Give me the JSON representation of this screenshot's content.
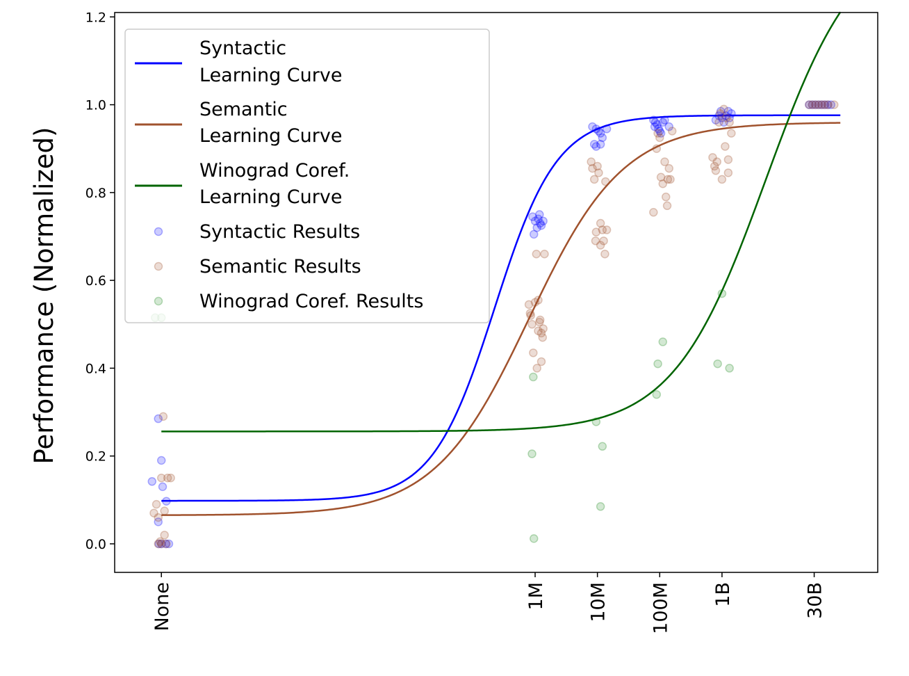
{
  "chart_data": {
    "type": "scatter",
    "ylabel": "Performance (Normalized)",
    "xlabel": "",
    "ylim": [
      -0.065,
      1.21
    ],
    "xlim": [
      -0.75,
      11.5
    ],
    "grid": false,
    "legend_position": "top-left",
    "x_ticks": [
      {
        "label": "None",
        "x": 0
      },
      {
        "label": "1M",
        "x": 6
      },
      {
        "label": "10M",
        "x": 7
      },
      {
        "label": "100M",
        "x": 8
      },
      {
        "label": "1B",
        "x": 9
      },
      {
        "label": "30B",
        "x": 10.48
      }
    ],
    "y_ticks": [
      0.0,
      0.2,
      0.4,
      0.6,
      0.8,
      1.0,
      1.2
    ],
    "curves": [
      {
        "name": "Syntactic\nLearning Curve",
        "color": "#0000ff",
        "low": 0.098,
        "high": 0.976,
        "mid": 5.35,
        "slope": 2.0
      },
      {
        "name": "Semantic\nLearning Curve",
        "color": "#a0522d",
        "low": 0.065,
        "high": 0.96,
        "mid": 5.9,
        "slope": 1.32
      },
      {
        "name": "Winograd Coref.\nLearning Curve",
        "color": "#006400",
        "low": 0.256,
        "high": 1.4,
        "mid": 9.7,
        "slope": 1.35
      }
    ],
    "scatter": [
      {
        "name": "Syntactic Results",
        "color": "#0000ff",
        "points": [
          [
            -0.15,
            0.142
          ],
          [
            -0.05,
            0.285
          ],
          [
            0.0,
            0.19
          ],
          [
            0.02,
            0.13
          ],
          [
            0.08,
            0.097
          ],
          [
            -0.05,
            0.05
          ],
          [
            -0.04,
            0.0
          ],
          [
            0.0,
            0.0
          ],
          [
            0.07,
            0.0
          ],
          [
            0.12,
            0.0
          ],
          [
            5.96,
            0.745
          ],
          [
            6.0,
            0.735
          ],
          [
            6.03,
            0.72
          ],
          [
            6.05,
            0.74
          ],
          [
            6.07,
            0.75
          ],
          [
            6.08,
            0.73
          ],
          [
            6.1,
            0.725
          ],
          [
            6.13,
            0.735
          ],
          [
            5.98,
            0.705
          ],
          [
            6.92,
            0.95
          ],
          [
            6.95,
            0.91
          ],
          [
            6.98,
            0.945
          ],
          [
            7.02,
            0.94
          ],
          [
            7.05,
            0.935
          ],
          [
            7.08,
            0.925
          ],
          [
            6.98,
            0.905
          ],
          [
            7.15,
            0.945
          ],
          [
            7.05,
            0.91
          ],
          [
            7.9,
            0.965
          ],
          [
            7.93,
            0.96
          ],
          [
            7.96,
            0.955
          ],
          [
            7.98,
            0.945
          ],
          [
            8.0,
            0.94
          ],
          [
            8.02,
            0.935
          ],
          [
            8.05,
            0.96
          ],
          [
            8.08,
            0.965
          ],
          [
            8.15,
            0.95
          ],
          [
            7.92,
            0.95
          ],
          [
            8.9,
            0.965
          ],
          [
            8.95,
            0.975
          ],
          [
            8.98,
            0.985
          ],
          [
            9.0,
            0.97
          ],
          [
            9.03,
            0.96
          ],
          [
            9.06,
            0.975
          ],
          [
            9.1,
            0.985
          ],
          [
            9.12,
            0.97
          ],
          [
            9.15,
            0.98
          ],
          [
            10.4,
            1.0
          ],
          [
            10.45,
            1.0
          ],
          [
            10.5,
            1.0
          ],
          [
            10.55,
            1.0
          ],
          [
            10.6,
            1.0
          ],
          [
            10.65,
            1.0
          ],
          [
            10.7,
            1.0
          ],
          [
            10.75,
            1.0
          ]
        ]
      },
      {
        "name": "Semantic Results",
        "color": "#a0522d",
        "points": [
          [
            -0.12,
            0.07
          ],
          [
            -0.08,
            0.09
          ],
          [
            -0.05,
            0.06
          ],
          [
            0.0,
            0.15
          ],
          [
            0.03,
            0.29
          ],
          [
            0.05,
            0.075
          ],
          [
            0.1,
            0.15
          ],
          [
            0.15,
            0.15
          ],
          [
            -0.05,
            0.0
          ],
          [
            0.0,
            0.0
          ],
          [
            0.05,
            0.02
          ],
          [
            0.08,
            0.0
          ],
          [
            -0.02,
            0.005
          ],
          [
            5.9,
            0.545
          ],
          [
            5.92,
            0.525
          ],
          [
            5.95,
            0.5
          ],
          [
            5.97,
            0.435
          ],
          [
            6.0,
            0.55
          ],
          [
            6.02,
            0.66
          ],
          [
            6.03,
            0.4
          ],
          [
            6.05,
            0.485
          ],
          [
            6.07,
            0.505
          ],
          [
            6.08,
            0.51
          ],
          [
            6.1,
            0.48
          ],
          [
            6.1,
            0.415
          ],
          [
            6.12,
            0.47
          ],
          [
            6.13,
            0.49
          ],
          [
            6.15,
            0.66
          ],
          [
            5.93,
            0.52
          ],
          [
            6.05,
            0.555
          ],
          [
            6.9,
            0.87
          ],
          [
            6.92,
            0.855
          ],
          [
            6.95,
            0.83
          ],
          [
            6.97,
            0.69
          ],
          [
            7.0,
            0.86
          ],
          [
            7.02,
            0.845
          ],
          [
            7.05,
            0.73
          ],
          [
            7.05,
            0.68
          ],
          [
            7.08,
            0.715
          ],
          [
            7.1,
            0.69
          ],
          [
            7.12,
            0.66
          ],
          [
            7.13,
            0.825
          ],
          [
            7.15,
            0.715
          ],
          [
            6.98,
            0.71
          ],
          [
            7.9,
            0.755
          ],
          [
            7.95,
            0.9
          ],
          [
            7.97,
            0.935
          ],
          [
            8.0,
            0.925
          ],
          [
            8.02,
            0.835
          ],
          [
            8.05,
            0.82
          ],
          [
            8.08,
            0.87
          ],
          [
            8.1,
            0.79
          ],
          [
            8.12,
            0.77
          ],
          [
            8.13,
            0.83
          ],
          [
            8.15,
            0.855
          ],
          [
            8.17,
            0.83
          ],
          [
            8.2,
            0.94
          ],
          [
            8.85,
            0.88
          ],
          [
            8.88,
            0.86
          ],
          [
            8.9,
            0.85
          ],
          [
            8.92,
            0.87
          ],
          [
            8.95,
            0.96
          ],
          [
            8.97,
            0.98
          ],
          [
            9.0,
            0.83
          ],
          [
            9.03,
            0.99
          ],
          [
            9.05,
            0.905
          ],
          [
            9.07,
            0.97
          ],
          [
            9.1,
            0.875
          ],
          [
            9.1,
            0.845
          ],
          [
            9.12,
            0.96
          ],
          [
            9.15,
            0.935
          ],
          [
            10.4,
            1.0
          ],
          [
            10.45,
            1.0
          ],
          [
            10.5,
            1.0
          ],
          [
            10.55,
            1.0
          ],
          [
            10.6,
            1.0
          ],
          [
            10.65,
            1.0
          ],
          [
            10.7,
            1.0
          ],
          [
            10.8,
            1.0
          ]
        ]
      },
      {
        "name": "Winograd Coref. Results",
        "color": "#228b22",
        "points": [
          [
            -0.1,
            0.515
          ],
          [
            0.0,
            0.515
          ],
          [
            5.95,
            0.205
          ],
          [
            5.97,
            0.38
          ],
          [
            5.98,
            0.012
          ],
          [
            6.98,
            0.278
          ],
          [
            7.05,
            0.085
          ],
          [
            7.08,
            0.222
          ],
          [
            7.95,
            0.34
          ],
          [
            7.97,
            0.41
          ],
          [
            8.05,
            0.46
          ],
          [
            8.93,
            0.41
          ],
          [
            9.0,
            0.57
          ],
          [
            9.12,
            0.4
          ]
        ]
      }
    ]
  }
}
